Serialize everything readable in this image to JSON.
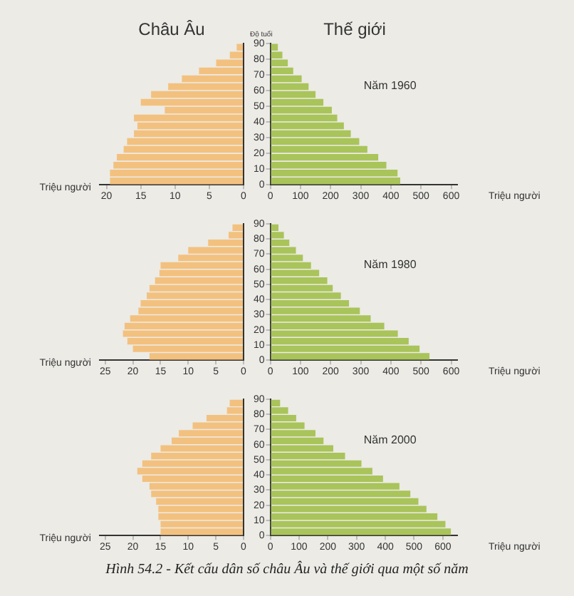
{
  "chart_data": [
    {
      "type": "bar",
      "orientation": "horizontal",
      "title": "Châu Âu",
      "xlabel": "Triệu người",
      "color": "#f3c17f",
      "x": [
        2.5,
        7.5,
        12.5,
        17.5,
        22.5,
        27.5,
        32.5,
        37.5,
        42.5,
        47.5,
        52.5,
        57.5,
        62.5,
        67.5,
        72.5,
        77.5,
        82.5,
        87.5
      ],
      "values": [
        19.5,
        19.5,
        19,
        18.5,
        17.5,
        17,
        16,
        15.5,
        16,
        11.5,
        15,
        13.5,
        11,
        9,
        6.5,
        4,
        2,
        1
      ],
      "xlim": [
        21,
        0
      ],
      "xticks": [
        20,
        15,
        10,
        5,
        0
      ],
      "ylim": [
        0,
        90
      ],
      "tick_labels": "x"
    },
    {
      "type": "bar",
      "orientation": "horizontal",
      "title": "Thế giới",
      "subtitle": "Năm 1960",
      "ylabel": "Độ tuổi",
      "xlabel": "Triệu người",
      "color": "#a9c45a",
      "x": [
        2.5,
        7.5,
        12.5,
        17.5,
        22.5,
        27.5,
        32.5,
        37.5,
        42.5,
        47.5,
        52.5,
        57.5,
        62.5,
        67.5,
        72.5,
        77.5,
        82.5,
        87.5
      ],
      "values": [
        431,
        422,
        385,
        358,
        322,
        295,
        267,
        244,
        222,
        204,
        176,
        150,
        127,
        104,
        76,
        58,
        40,
        25
      ],
      "xlim": [
        0,
        620
      ],
      "xticks": [
        0,
        100,
        200,
        300,
        400,
        500,
        600
      ],
      "ylim": [
        0,
        90
      ],
      "yticks": [
        0,
        10,
        20,
        30,
        40,
        50,
        60,
        70,
        80,
        90
      ]
    },
    {
      "type": "bar",
      "orientation": "horizontal",
      "xlabel": "Triệu người",
      "color": "#f3c17f",
      "x": [
        2.5,
        7.5,
        12.5,
        17.5,
        22.5,
        27.5,
        32.5,
        37.5,
        42.5,
        47.5,
        52.5,
        57.5,
        62.5,
        67.5,
        72.5,
        77.5,
        82.5,
        87.5
      ],
      "values": [
        17,
        20,
        21,
        21.8,
        21.5,
        20.5,
        19,
        18.6,
        17.5,
        17,
        16,
        15.2,
        15,
        11.8,
        10,
        6.4,
        2.7,
        2
      ],
      "xlim": [
        26,
        0
      ],
      "xticks": [
        25,
        20,
        15,
        10,
        5,
        0
      ],
      "ylim": [
        0,
        90
      ],
      "tick_labels": "x"
    },
    {
      "type": "bar",
      "orientation": "horizontal",
      "subtitle": "Năm 1980",
      "xlabel": "Triệu người",
      "color": "#a9c45a",
      "x": [
        2.5,
        7.5,
        12.5,
        17.5,
        22.5,
        27.5,
        32.5,
        37.5,
        42.5,
        47.5,
        52.5,
        57.5,
        62.5,
        67.5,
        72.5,
        77.5,
        82.5,
        87.5
      ],
      "values": [
        528,
        495,
        459,
        423,
        378,
        333,
        297,
        261,
        234,
        207,
        189,
        162,
        135,
        108,
        85,
        63,
        45,
        27
      ],
      "xlim": [
        0,
        620
      ],
      "xticks": [
        0,
        100,
        200,
        300,
        400,
        500,
        600
      ],
      "ylim": [
        0,
        90
      ],
      "yticks": [
        0,
        10,
        20,
        30,
        40,
        50,
        60,
        70,
        80,
        90
      ]
    },
    {
      "type": "bar",
      "orientation": "horizontal",
      "xlabel": "Triệu người",
      "color": "#f3c17f",
      "x": [
        2.5,
        7.5,
        12.5,
        17.5,
        22.5,
        27.5,
        32.5,
        37.5,
        42.5,
        47.5,
        52.5,
        57.5,
        62.5,
        67.5,
        72.5,
        77.5,
        82.5,
        87.5
      ],
      "values": [
        15,
        15,
        15.4,
        15.4,
        15.8,
        16.7,
        17,
        18.3,
        19.2,
        18.3,
        16.7,
        15,
        13,
        11.7,
        9.2,
        6.7,
        3,
        2.5
      ],
      "xlim": [
        26,
        0
      ],
      "xticks": [
        25,
        20,
        15,
        10,
        5,
        0
      ],
      "ylim": [
        0,
        90
      ],
      "tick_labels": "x"
    },
    {
      "type": "bar",
      "orientation": "horizontal",
      "subtitle": "Năm 2000",
      "xlabel": "Triệu người",
      "color": "#a9c45a",
      "x": [
        2.5,
        7.5,
        12.5,
        17.5,
        22.5,
        27.5,
        32.5,
        37.5,
        42.5,
        47.5,
        52.5,
        57.5,
        62.5,
        67.5,
        72.5,
        77.5,
        82.5,
        87.5
      ],
      "values": [
        628,
        609,
        581,
        543,
        515,
        487,
        449,
        392,
        355,
        317,
        260,
        219,
        185,
        157,
        119,
        90,
        62,
        34
      ],
      "xlim": [
        0,
        650
      ],
      "xticks": [
        0,
        100,
        200,
        300,
        400,
        500,
        600
      ],
      "ylim": [
        0,
        90
      ],
      "yticks": [
        0,
        10,
        20,
        30,
        40,
        50,
        60,
        70,
        80,
        90
      ],
      "annotations": [
        "Hình 54.2 - Kết cấu dân số châu Âu và thế giới qua một số năm"
      ]
    }
  ]
}
